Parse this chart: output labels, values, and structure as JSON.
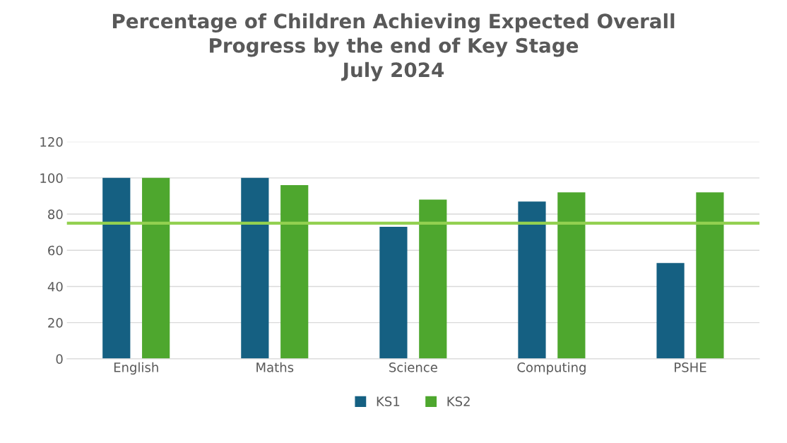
{
  "chart_data": {
    "type": "bar",
    "title": "Percentage of Children Achieving Expected Overall\nProgress by the end of Key Stage\nJuly 2024",
    "categories": [
      "English",
      "Maths",
      "Science",
      "Computing",
      "PSHE"
    ],
    "series": [
      {
        "name": "KS1",
        "color": "#156082",
        "values": [
          100,
          100,
          73,
          87,
          53
        ]
      },
      {
        "name": "KS2",
        "color": "#4ea72e",
        "values": [
          100,
          96,
          88,
          92,
          92
        ]
      }
    ],
    "ylim": [
      0,
      120
    ],
    "yticks": [
      0,
      20,
      40,
      60,
      80,
      100,
      120
    ],
    "grid": "y",
    "legend": "bottom",
    "ref_lines": [
      {
        "axis": "y",
        "value": 75,
        "color": "#92d050"
      }
    ]
  }
}
